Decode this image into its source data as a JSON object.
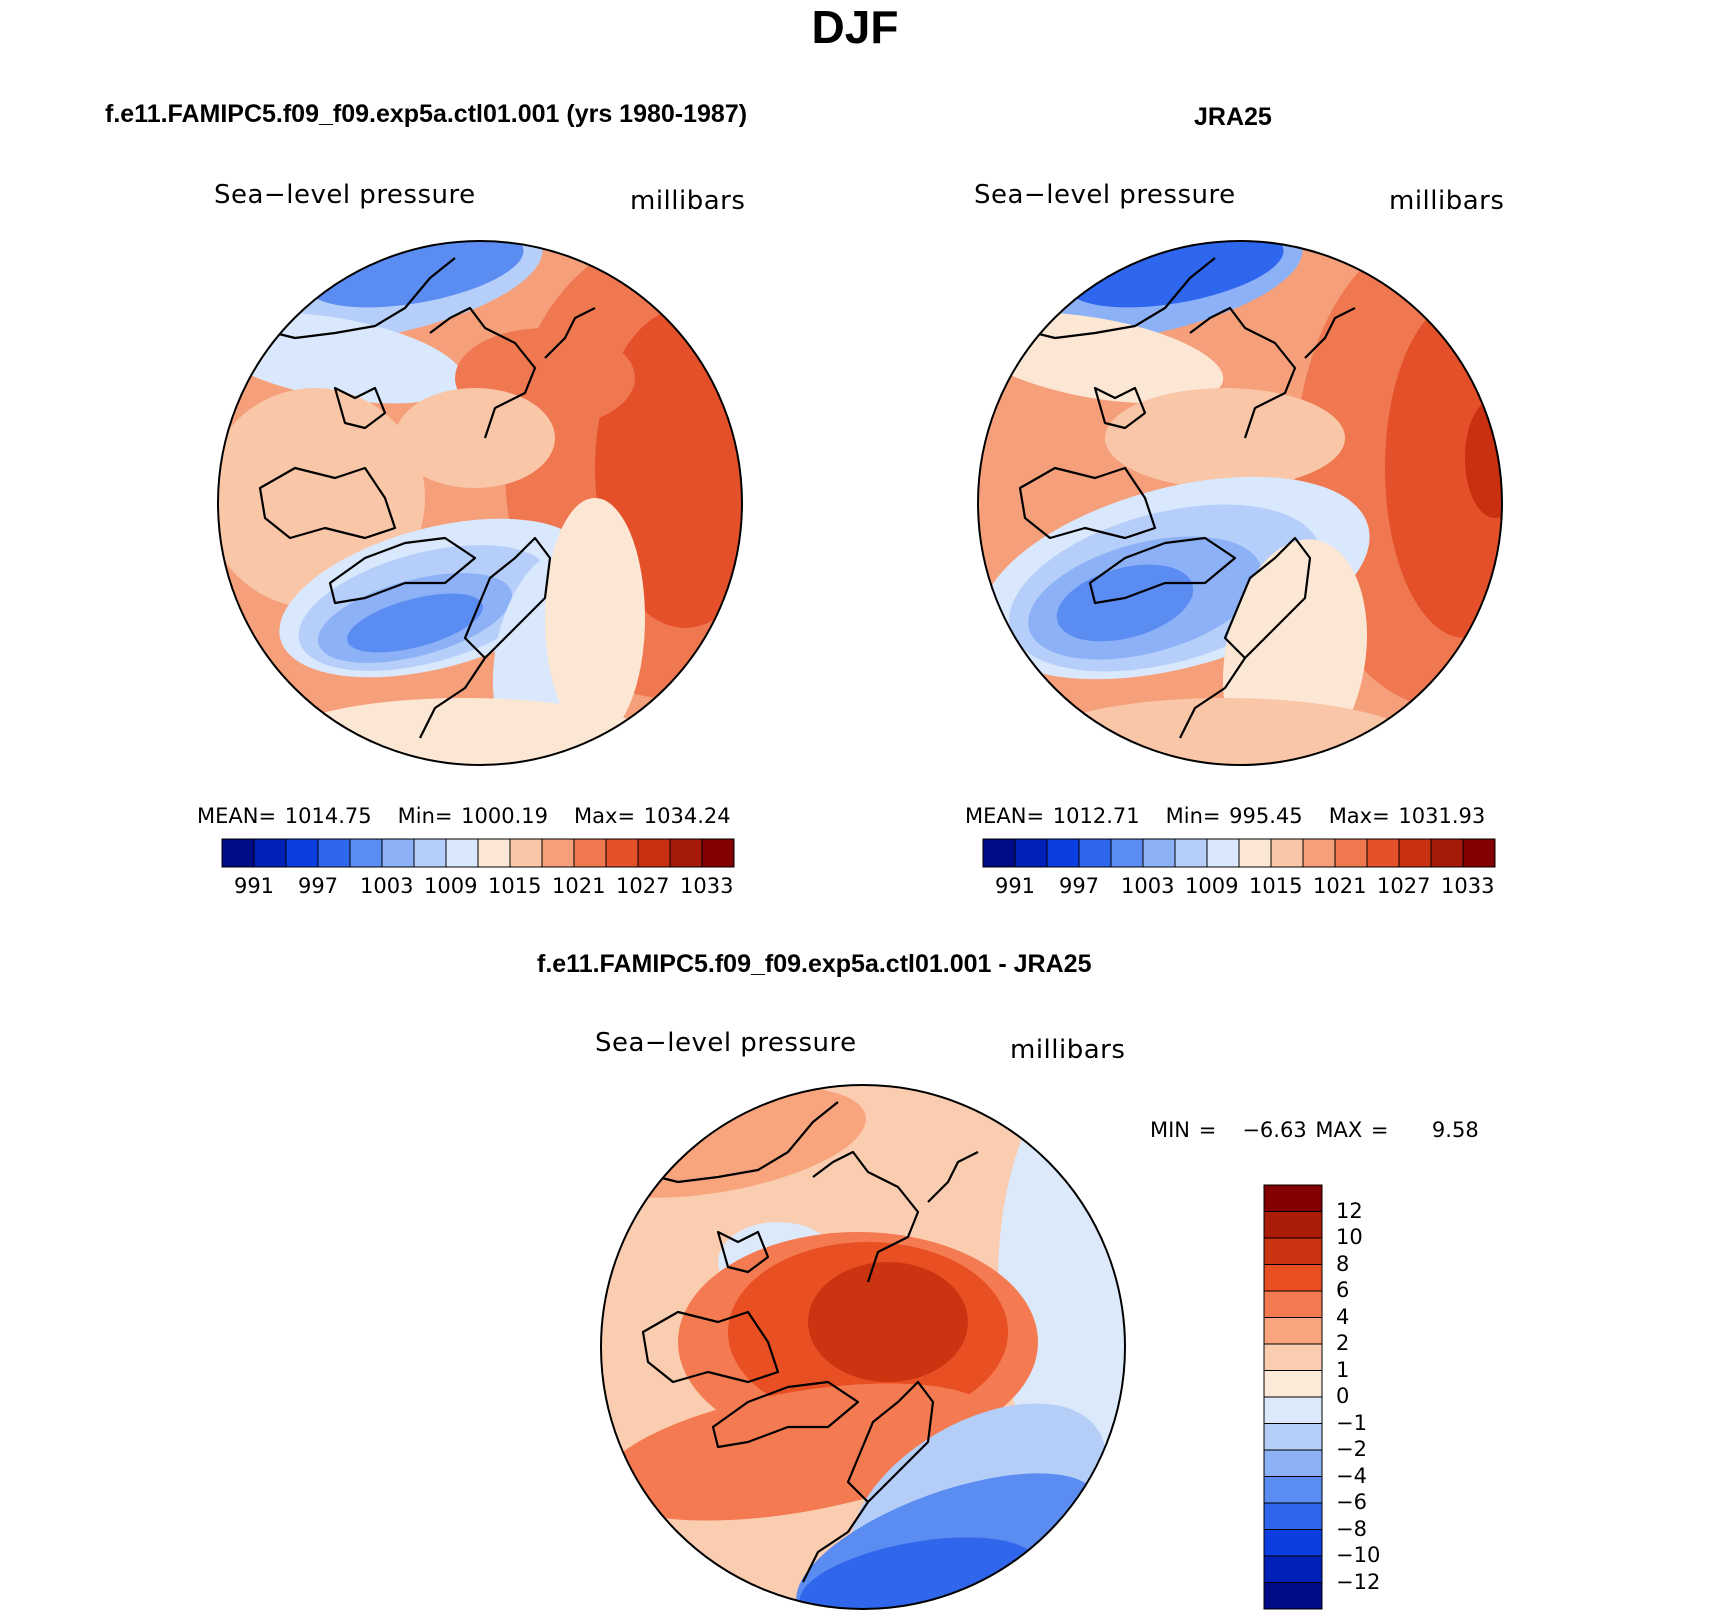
{
  "title": "DJF",
  "panels": [
    {
      "id": "model",
      "title": "f.e11.FAMIPC5.f09_f09.exp5a.ctl01.001 (yrs 1980-1987)",
      "variable": "Sea−level pressure",
      "units": "millibars",
      "stats": {
        "mean_label": "MEAN=",
        "mean": "1014.75",
        "min_label": "Min=",
        "min": "1000.19",
        "max_label": "Max=",
        "max": "1034.24"
      },
      "colorbar_ticks": [
        "991",
        "997",
        "1003",
        "1009",
        "1015",
        "1021",
        "1027",
        "1033"
      ]
    },
    {
      "id": "obs",
      "title": "JRA25",
      "variable": "Sea−level pressure",
      "units": "millibars",
      "stats": {
        "mean_label": "MEAN=",
        "mean": "1012.71",
        "min_label": "Min=",
        "min": "995.45",
        "max_label": "Max=",
        "max": "1031.93"
      },
      "colorbar_ticks": [
        "991",
        "997",
        "1003",
        "1009",
        "1015",
        "1021",
        "1027",
        "1033"
      ]
    },
    {
      "id": "diff",
      "title": "f.e11.FAMIPC5.f09_f09.exp5a.ctl01.001 - JRA25",
      "variable": "Sea−level pressure",
      "units": "millibars",
      "stats": {
        "min_label": "MIN =",
        "min": "−6.63",
        "max_label": "MAX =",
        "max": "9.58"
      },
      "colorbar_ticks": [
        "12",
        "10",
        "8",
        "6",
        "4",
        "2",
        "1",
        "0",
        "−1",
        "−2",
        "−4",
        "−6",
        "−8",
        "−10",
        "−12"
      ]
    }
  ],
  "palettes": {
    "abs": [
      "#000c86",
      "#0020b8",
      "#0a3ee0",
      "#2f66ee",
      "#5a8cf2",
      "#8db1f6",
      "#b6cffa",
      "#d9e8fc",
      "#fbe7d4",
      "#f9c6a8",
      "#f5a07a",
      "#f07850",
      "#e3502a",
      "#c8300f",
      "#a51a0a",
      "#820000"
    ],
    "diff": [
      "#820000",
      "#ab1d08",
      "#cb3410",
      "#e84f22",
      "#f47a52",
      "#f8a57e",
      "#fbcdb0",
      "#fde9d8",
      "#dce9fb",
      "#b5cef8",
      "#8db1f5",
      "#5b8cf1",
      "#2f66ec",
      "#0a3ee0",
      "#0020b8",
      "#000c86"
    ]
  }
}
